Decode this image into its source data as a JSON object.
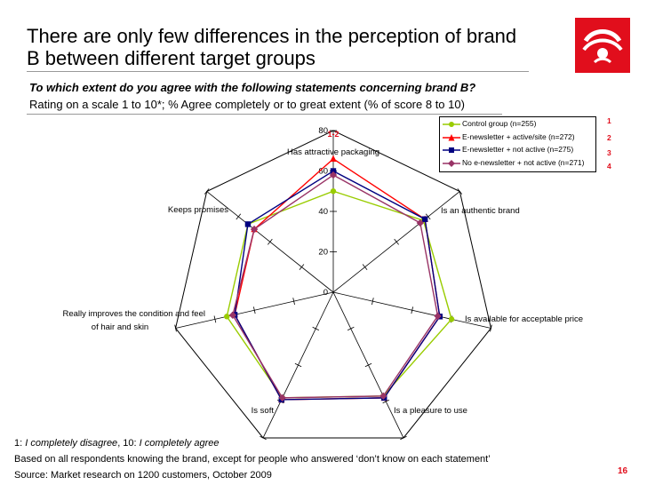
{
  "title": "There are only few differences in the perception of brand B between different target groups",
  "question": "To which extent do you agree with the following statements concerning brand B?",
  "rating_text": "Rating on a scale 1 to 10*; % Agree completely or to great extent (% of score 8 to 10)",
  "ranks": [
    "1",
    "2",
    "3",
    "4"
  ],
  "footnote": {
    "scale_1": "1: ",
    "scale_1_text": "I completely disagree",
    "scale_sep": ", 10: ",
    "scale_10_text": "I completely agree",
    "basis": "Based on all respondents knowing the brand, except for people who answered ‘don’t know on each statement’",
    "source": "Source:  Market research on 1200 customers, October 2009"
  },
  "page_number": "16",
  "colors": {
    "accent": "#e10e1c",
    "control": "#99cc00",
    "active": "#ff0000",
    "not_active": "#000080",
    "no_newsletter": "#993366"
  },
  "chart_data": {
    "type": "radar",
    "annotation": "1-2",
    "axes": [
      "Has attractive packaging",
      "Is an authentic brand",
      "Is available for acceptable price",
      "Is a pleasure to use",
      "Is soft",
      "Really improves the condition and feel of  hair and skin",
      "Keeps promises"
    ],
    "ticks": [
      0,
      20,
      40,
      60,
      80
    ],
    "rmax": 80,
    "series": [
      {
        "name": "Control group (n=255)",
        "values": [
          50,
          57,
          60,
          57,
          58,
          54,
          54
        ],
        "color": "#99cc00",
        "marker": "circle"
      },
      {
        "name": "E-newsletter + active/site (n=272)",
        "values": [
          66,
          58,
          54,
          58,
          59,
          50,
          50
        ],
        "color": "#ff0000",
        "marker": "triangle"
      },
      {
        "name": "E-newsletter + not active (n=275)",
        "values": [
          60,
          58,
          54,
          58,
          59,
          50,
          54
        ],
        "color": "#000080",
        "marker": "square"
      },
      {
        "name": "No e-newsletter + not active (n=271)",
        "values": [
          58,
          55,
          53,
          57,
          58,
          51,
          50
        ],
        "color": "#993366",
        "marker": "diamond"
      }
    ]
  }
}
